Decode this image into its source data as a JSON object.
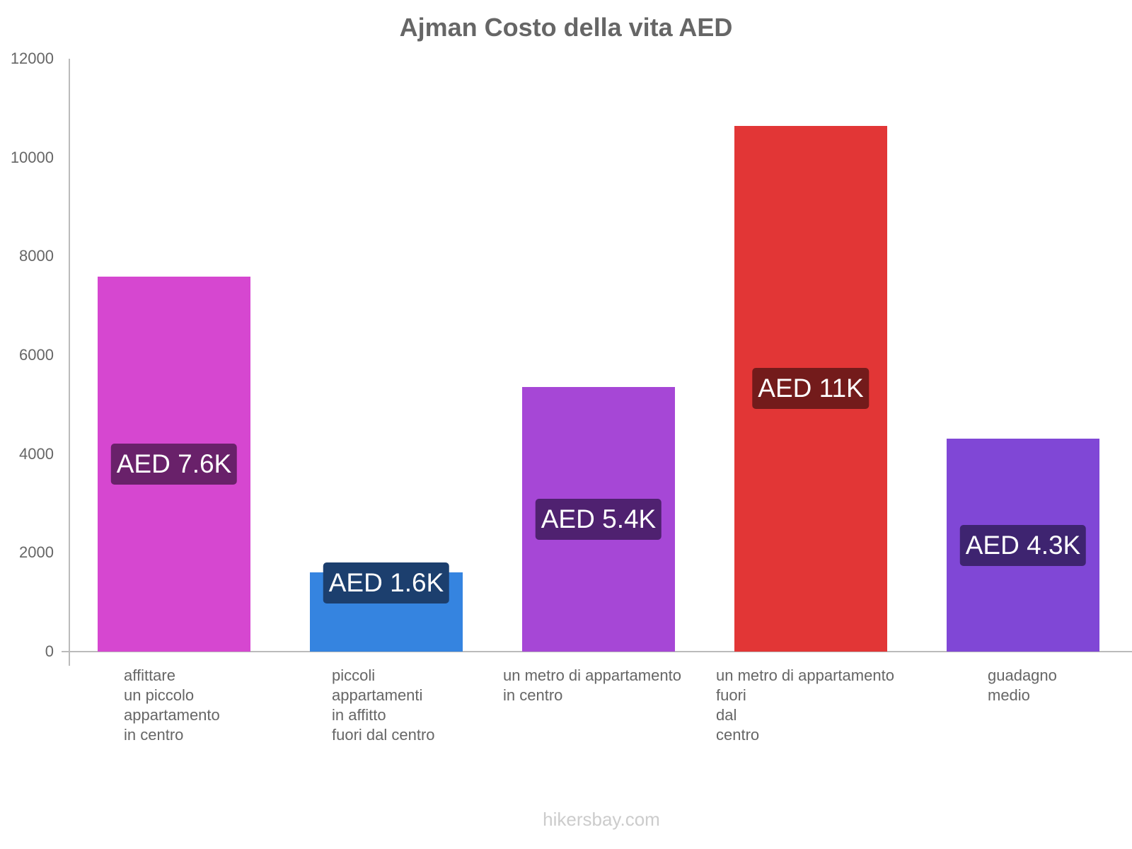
{
  "chart_data": {
    "type": "bar",
    "title": "Ajman Costo della vita AED",
    "xlabel": "",
    "ylabel": "",
    "ylim": [
      0,
      12000
    ],
    "yticks": [
      0,
      2000,
      4000,
      6000,
      8000,
      10000,
      12000
    ],
    "grid": false,
    "legend": null,
    "categories": [
      "affittare un piccolo appartamento in centro",
      "piccoli appartamenti in affitto fuori dal centro",
      "un metro di appartamento in centro",
      "un metro di appartamento fuori dal centro",
      "guadagno medio"
    ],
    "values": [
      7590,
      1600,
      5350,
      10640,
      4310
    ],
    "data_labels": [
      "AED 7.6K",
      "AED 1.6K",
      "AED 5.4K",
      "AED 11K",
      "AED 4.3K"
    ],
    "colors": [
      "#d647d0",
      "#3584e0",
      "#a647d6",
      "#e23636",
      "#8047d6"
    ],
    "label_colors": [
      "#69216a",
      "#1c3f6e",
      "#4f2170",
      "#731b1b",
      "#3e2470"
    ]
  },
  "title": "Ajman Costo della vita AED",
  "yaxis": {
    "ticks": [
      "0",
      "2000",
      "4000",
      "6000",
      "8000",
      "10000",
      "12000"
    ]
  },
  "xaxis": {
    "labels": [
      "affittare\nun piccolo\nappartamento\nin centro",
      "piccoli\nappartamenti\nin affitto\nfuori dal centro",
      "un metro di appartamento\nin centro",
      "un metro di appartamento\nfuori\ndal\ncentro",
      "guadagno\nmedio"
    ]
  },
  "bars": [
    {
      "label": "AED 7.6K"
    },
    {
      "label": "AED 1.6K"
    },
    {
      "label": "AED 5.4K"
    },
    {
      "label": "AED 11K"
    },
    {
      "label": "AED 4.3K"
    }
  ],
  "footer": "hikersbay.com"
}
